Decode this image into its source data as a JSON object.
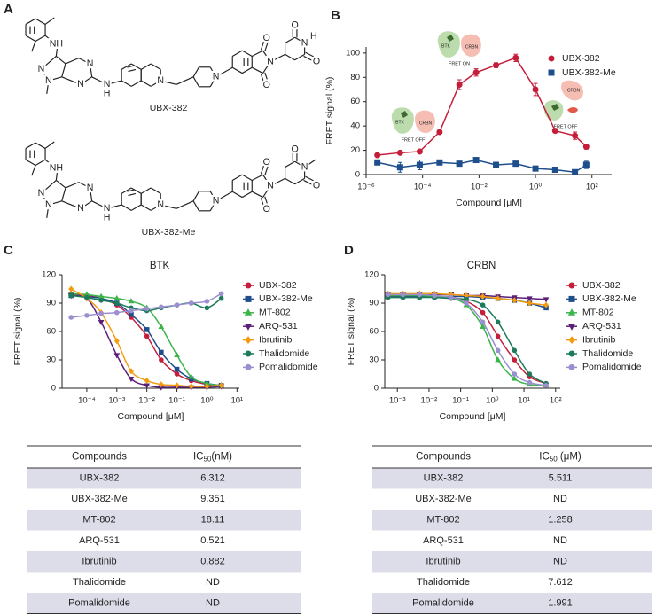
{
  "panel_labels": [
    "A",
    "B",
    "C",
    "D"
  ],
  "structures": [
    {
      "name": "UBX-382",
      "atoms": [
        "NH",
        "N",
        "N",
        "N",
        "N",
        "N",
        "H",
        "N",
        "N",
        "O",
        "O",
        "N",
        "O",
        "N",
        "H",
        "O"
      ]
    },
    {
      "name": "UBX-382-Me",
      "atoms": [
        "NH",
        "N",
        "N",
        "N",
        "N",
        "N",
        "H",
        "N",
        "N",
        "O",
        "O",
        "N",
        "O",
        "N",
        "O"
      ]
    }
  ],
  "chart_data": [
    {
      "type": "line",
      "xlabel": "Compound [μM]",
      "ylabel": "FRET signal (%)",
      "xlog": true,
      "interpolation": "linear",
      "xlim": [
        1e-06,
        500
      ],
      "xticks": [
        {
          "value": 1e-06,
          "label": "10⁻⁶"
        },
        {
          "value": 0.0001,
          "label": "10⁻⁴"
        },
        {
          "value": 0.01,
          "label": "10⁻²"
        },
        {
          "value": 1,
          "label": "10⁰"
        },
        {
          "value": 100,
          "label": "10²"
        }
      ],
      "ylim": [
        0,
        105
      ],
      "yticks": [
        0,
        20,
        40,
        60,
        80,
        100
      ],
      "legend": "upper right",
      "x": [
        2.5e-06,
        1.6e-05,
        7.9e-05,
        0.0004,
        0.002,
        0.0079,
        0.04,
        0.2,
        1,
        5,
        25,
        63
      ],
      "series": [
        {
          "name": "UBX-382",
          "color": "#c41e3a",
          "marker": "circle",
          "values": [
            16,
            18,
            19,
            35,
            74,
            84,
            90,
            96,
            70,
            36,
            32,
            23
          ],
          "errors": [
            1,
            1,
            1,
            1,
            4,
            3,
            2,
            3,
            5,
            1,
            3,
            2
          ]
        },
        {
          "name": "UBX-382-Me",
          "color": "#1f4e8c",
          "marker": "square",
          "values": [
            10,
            6,
            8,
            10,
            9,
            12,
            8,
            9,
            5,
            4,
            2,
            8
          ],
          "errors": [
            2,
            4,
            4,
            1,
            1,
            1,
            1,
            2,
            1,
            1,
            1,
            3
          ]
        }
      ],
      "insets": [
        {
          "labels": [
            "BTK",
            "CRBN"
          ],
          "state": "FRET OFF"
        },
        {
          "labels": [
            "BTK",
            "CRBN"
          ],
          "state": "FRET ON"
        },
        {
          "labels": [
            "CRBN"
          ],
          "state": "FRET OFF"
        }
      ]
    },
    {
      "type": "line",
      "title": "BTK",
      "xlabel": "Compound [μM]",
      "ylabel": "FRET signal (%)",
      "xlog": true,
      "interpolation": "spline",
      "xlim": [
        1.5e-05,
        12
      ],
      "xticks": [
        {
          "value": 0.0001,
          "label": "10⁻⁴"
        },
        {
          "value": 0.001,
          "label": "10⁻³"
        },
        {
          "value": 0.01,
          "label": "10⁻²"
        },
        {
          "value": 0.1,
          "label": "10⁻¹"
        },
        {
          "value": 1,
          "label": "10⁰"
        },
        {
          "value": 10,
          "label": "10¹"
        }
      ],
      "ylim": [
        0,
        120
      ],
      "yticks": [
        0,
        30,
        60,
        90,
        120
      ],
      "legend": "right",
      "x": [
        3e-05,
        0.0001,
        0.0003,
        0.001,
        0.003,
        0.01,
        0.03,
        0.1,
        0.3,
        1,
        3
      ],
      "series": [
        {
          "name": "UBX-382",
          "color": "#c41e3a",
          "marker": "circle",
          "values": [
            100,
            98,
            95,
            88,
            75,
            55,
            30,
            15,
            8,
            4,
            2
          ]
        },
        {
          "name": "UBX-382-Me",
          "color": "#1f4e8c",
          "marker": "square",
          "values": [
            98,
            97,
            95,
            90,
            78,
            62,
            38,
            20,
            10,
            5,
            3
          ]
        },
        {
          "name": "MT-802",
          "color": "#3cb44b",
          "marker": "triangle",
          "values": [
            100,
            99,
            97,
            95,
            92,
            85,
            65,
            35,
            12,
            5,
            3
          ]
        },
        {
          "name": "ARQ-531",
          "color": "#5b1f7a",
          "marker": "triangle-down",
          "values": [
            98,
            95,
            70,
            35,
            10,
            3,
            1,
            1,
            1,
            1,
            2
          ]
        },
        {
          "name": "Ibrutinib",
          "color": "#f39c12",
          "marker": "diamond",
          "values": [
            105,
            95,
            80,
            50,
            18,
            8,
            4,
            3,
            2,
            2,
            3
          ]
        },
        {
          "name": "Thalidomide",
          "color": "#1e7b5a",
          "marker": "circle",
          "values": [
            98,
            96,
            93,
            90,
            85,
            82,
            85,
            88,
            90,
            85,
            95
          ]
        },
        {
          "name": "Pomalidomide",
          "color": "#9b8fd0",
          "marker": "circle",
          "values": [
            75,
            77,
            79,
            80,
            82,
            84,
            86,
            88,
            90,
            92,
            100
          ]
        }
      ]
    },
    {
      "type": "line",
      "title": "CRBN",
      "xlabel": "Compound [μM]",
      "ylabel": "FRET signal (%)",
      "xlog": true,
      "interpolation": "spline",
      "xlim": [
        0.0004,
        140
      ],
      "xticks": [
        {
          "value": 0.001,
          "label": "10⁻³"
        },
        {
          "value": 0.01,
          "label": "10⁻²"
        },
        {
          "value": 0.1,
          "label": "10⁻¹"
        },
        {
          "value": 1,
          "label": "10⁰"
        },
        {
          "value": 10,
          "label": "10¹"
        },
        {
          "value": 100,
          "label": "10²"
        }
      ],
      "ylim": [
        0,
        120
      ],
      "yticks": [
        0,
        30,
        60,
        90,
        120
      ],
      "legend": "right",
      "x": [
        0.0005,
        0.0015,
        0.005,
        0.015,
        0.05,
        0.15,
        0.5,
        1.5,
        5,
        15,
        50
      ],
      "series": [
        {
          "name": "UBX-382",
          "color": "#c41e3a",
          "marker": "circle",
          "values": [
            98,
            98,
            98,
            97,
            96,
            92,
            80,
            55,
            30,
            12,
            5
          ]
        },
        {
          "name": "UBX-382-Me",
          "color": "#1f4e8c",
          "marker": "square",
          "values": [
            97,
            97,
            97,
            97,
            97,
            97,
            96,
            95,
            93,
            90,
            85
          ]
        },
        {
          "name": "MT-802",
          "color": "#3cb44b",
          "marker": "triangle",
          "values": [
            98,
            98,
            98,
            97,
            95,
            88,
            65,
            30,
            10,
            4,
            3
          ]
        },
        {
          "name": "ARQ-531",
          "color": "#5b1f7a",
          "marker": "triangle-down",
          "values": [
            99,
            99,
            99,
            99,
            99,
            98,
            98,
            97,
            96,
            95,
            94
          ]
        },
        {
          "name": "Ibrutinib",
          "color": "#f39c12",
          "marker": "diamond",
          "values": [
            100,
            100,
            100,
            100,
            99,
            98,
            97,
            95,
            93,
            90,
            88
          ]
        },
        {
          "name": "Thalidomide",
          "color": "#1e7b5a",
          "marker": "circle",
          "values": [
            96,
            96,
            96,
            96,
            95,
            94,
            88,
            70,
            40,
            15,
            5
          ]
        },
        {
          "name": "Pomalidomide",
          "color": "#9b8fd0",
          "marker": "circle",
          "values": [
            99,
            99,
            99,
            98,
            96,
            90,
            70,
            40,
            15,
            6,
            3
          ]
        }
      ]
    }
  ],
  "tables": [
    {
      "columns": [
        "Compounds",
        {
          "text": "IC",
          "sub": "50",
          "unit": "(nM)"
        }
      ],
      "rows": [
        [
          "UBX-382",
          "6.312"
        ],
        [
          "UBX-382-Me",
          "9.351"
        ],
        [
          "MT-802",
          "18.11"
        ],
        [
          "ARQ-531",
          "0.521"
        ],
        [
          "Ibrutinib",
          "0.882"
        ],
        [
          "Thalidomide",
          "ND"
        ],
        [
          "Pomalidomide",
          "ND"
        ]
      ]
    },
    {
      "columns": [
        "Compounds",
        {
          "text": "IC",
          "sub": "50",
          "unit": " (μM)"
        }
      ],
      "rows": [
        [
          "UBX-382",
          "5.511"
        ],
        [
          "UBX-382-Me",
          "ND"
        ],
        [
          "MT-802",
          "1.258"
        ],
        [
          "ARQ-531",
          "ND"
        ],
        [
          "Ibrutinib",
          "ND"
        ],
        [
          "Thalidomide",
          "7.612"
        ],
        [
          "Pomalidomide",
          "1.991"
        ]
      ]
    }
  ]
}
